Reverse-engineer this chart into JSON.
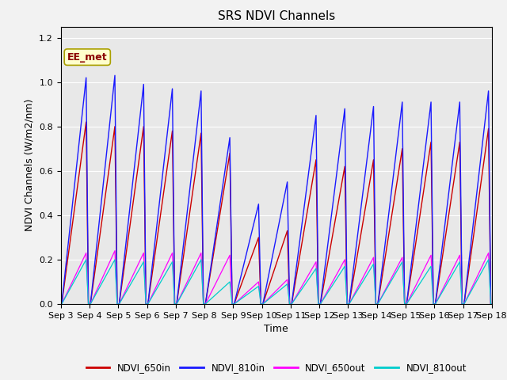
{
  "title": "SRS NDVI Channels",
  "ylabel": "NDVI Channels (W/m2/nm)",
  "xlabel": "Time",
  "annotation": "EE_met",
  "ylim": [
    0.0,
    1.25
  ],
  "plot_bg_color": "#e8e8e8",
  "fig_bg_color": "#f2f2f2",
  "colors": {
    "NDVI_650in": "#cc0000",
    "NDVI_810in": "#1a1aff",
    "NDVI_650out": "#ff00ff",
    "NDVI_810out": "#00cccc"
  },
  "day_peaks": {
    "NDVI_650in": [
      0.82,
      0.8,
      0.8,
      0.78,
      0.77,
      0.68,
      0.3,
      0.33,
      0.65,
      0.62,
      0.65,
      0.7,
      0.73,
      0.73,
      0.79
    ],
    "NDVI_810in": [
      1.02,
      1.03,
      0.99,
      0.97,
      0.96,
      0.75,
      0.45,
      0.55,
      0.85,
      0.88,
      0.89,
      0.91,
      0.91,
      0.91,
      0.96
    ],
    "NDVI_650out": [
      0.23,
      0.24,
      0.23,
      0.23,
      0.23,
      0.22,
      0.1,
      0.11,
      0.19,
      0.2,
      0.21,
      0.21,
      0.22,
      0.22,
      0.23
    ],
    "NDVI_810out": [
      0.2,
      0.2,
      0.19,
      0.19,
      0.2,
      0.1,
      0.08,
      0.09,
      0.16,
      0.17,
      0.18,
      0.19,
      0.17,
      0.19,
      0.2
    ]
  },
  "num_days": 15,
  "points_per_day": 200,
  "xtick_labels": [
    "Sep 3",
    "Sep 4",
    "Sep 5",
    "Sep 6",
    "Sep 7",
    "Sep 8",
    "Sep 9",
    "Sep 10",
    "Sep 11",
    "Sep 12",
    "Sep 13",
    "Sep 14",
    "Sep 15",
    "Sep 16",
    "Sep 17",
    "Sep 18"
  ],
  "grid_color": "#ffffff",
  "title_fontsize": 11,
  "label_fontsize": 9,
  "tick_fontsize": 8
}
